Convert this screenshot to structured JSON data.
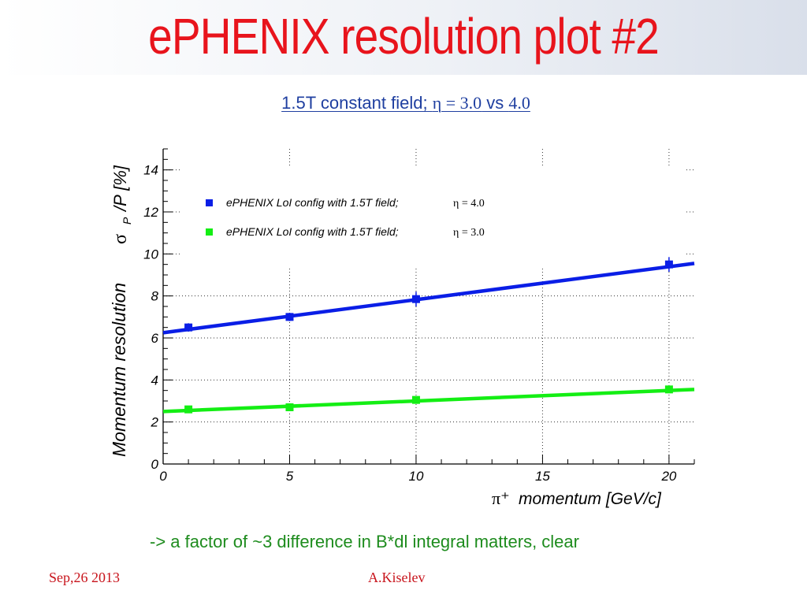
{
  "slide": {
    "title": "ePHENIX resolution plot #2",
    "subtitle_prefix": "1.5T constant field; ",
    "subtitle_eta1": "η = 3.0",
    "subtitle_vs": " vs ",
    "subtitle_eta2": "4.0",
    "note": "-> a factor of ~3 difference in B*dl integral matters, clear",
    "footer_date": "Sep,26 2013",
    "footer_author": "A.Kiselev"
  },
  "colors": {
    "title": "#e8141c",
    "subtitle": "#1f3fa0",
    "note": "#1e8c1e",
    "footer": "#c8141c",
    "series_eta4": "#0a1ee6",
    "series_eta3": "#14ee14"
  },
  "chart_data": {
    "type": "line",
    "xlabel_symbol": "π⁺",
    "xlabel": "momentum [GeV/c]",
    "ylabel_text": "Momentum resolution",
    "ylabel_symbol": "σ",
    "ylabel_sub": "P",
    "ylabel_unit": "/P  [%]",
    "xlim": [
      0,
      21
    ],
    "ylim": [
      0,
      15
    ],
    "xticks": [
      "0",
      "5",
      "10",
      "15",
      "20"
    ],
    "yticks": [
      "0",
      "2",
      "4",
      "6",
      "8",
      "10",
      "12",
      "14"
    ],
    "grid": true,
    "legend_position": "top-left",
    "series": [
      {
        "name": "ePHENIX LoI config with 1.5T field;",
        "eta_label": "η = 4.0",
        "color": "#0a1ee6",
        "points": [
          [
            1,
            6.5
          ],
          [
            5,
            7.0
          ],
          [
            10,
            7.85
          ],
          [
            20,
            9.5
          ]
        ],
        "errors": [
          0.2,
          0.2,
          0.35,
          0.35
        ],
        "fit": [
          [
            0,
            6.25
          ],
          [
            21,
            9.55
          ]
        ]
      },
      {
        "name": "ePHENIX LoI config with 1.5T field;",
        "eta_label": "η = 3.0",
        "color": "#14ee14",
        "points": [
          [
            1,
            2.6
          ],
          [
            5,
            2.7
          ],
          [
            10,
            3.05
          ],
          [
            20,
            3.55
          ]
        ],
        "errors": [
          0.1,
          0.1,
          0.1,
          0.12
        ],
        "fit": [
          [
            0,
            2.5
          ],
          [
            21,
            3.55
          ]
        ]
      }
    ]
  }
}
